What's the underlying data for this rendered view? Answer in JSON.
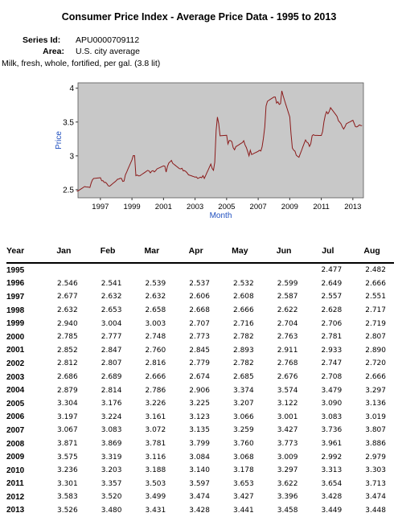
{
  "title": "Consumer Price Index - Average Price Data - 1995 to 2013",
  "series_id_label": "Series Id:",
  "series_id": "APU0000709112",
  "area_label": "Area:",
  "area": "U.S. city average",
  "item": "Milk, fresh, whole, fortified, per gal. (3.8 lit)",
  "chart_data": {
    "type": "line",
    "xlabel": "Month",
    "ylabel": "Price",
    "xlim": [
      1995.58,
      2013.67
    ],
    "ylim": [
      2.38,
      4.08
    ],
    "xticks": [
      1997,
      1999,
      2001,
      2003,
      2005,
      2007,
      2009,
      2011,
      2013
    ],
    "yticks": [
      2.5,
      3,
      3.5,
      4
    ],
    "grid": false,
    "colors": {
      "line": "#8b1a1a",
      "plot_bg": "#c8c8c8"
    },
    "series": [
      {
        "values_by_year": {
          "1995": [
            null,
            null,
            null,
            null,
            null,
            null,
            2.477,
            2.482,
            null,
            null,
            null,
            null
          ],
          "1996": [
            2.546,
            2.541,
            2.539,
            2.537,
            2.532,
            2.599,
            2.649,
            2.666,
            null,
            null,
            null,
            null
          ],
          "1997": [
            2.677,
            2.632,
            2.632,
            2.606,
            2.608,
            2.587,
            2.557,
            2.551,
            null,
            null,
            null,
            null
          ],
          "1998": [
            2.632,
            2.653,
            2.658,
            2.668,
            2.666,
            2.622,
            2.628,
            2.717,
            null,
            null,
            null,
            null
          ],
          "1999": [
            2.94,
            3.004,
            3.003,
            2.707,
            2.716,
            2.704,
            2.706,
            2.719,
            null,
            null,
            null,
            null
          ],
          "2000": [
            2.785,
            2.777,
            2.748,
            2.773,
            2.782,
            2.763,
            2.781,
            2.807,
            null,
            null,
            null,
            null
          ],
          "2001": [
            2.852,
            2.847,
            2.76,
            2.845,
            2.893,
            2.911,
            2.933,
            2.89,
            null,
            null,
            null,
            null
          ],
          "2002": [
            2.812,
            2.807,
            2.816,
            2.779,
            2.782,
            2.768,
            2.747,
            2.72,
            null,
            null,
            null,
            null
          ],
          "2003": [
            2.686,
            2.689,
            2.666,
            2.674,
            2.685,
            2.676,
            2.708,
            2.666,
            null,
            null,
            null,
            null
          ],
          "2004": [
            2.879,
            2.814,
            2.786,
            2.906,
            3.374,
            3.574,
            3.479,
            3.297,
            null,
            null,
            null,
            null
          ],
          "2005": [
            3.304,
            3.176,
            3.226,
            3.225,
            3.207,
            3.122,
            3.09,
            3.136,
            null,
            null,
            null,
            null
          ],
          "2006": [
            3.197,
            3.224,
            3.161,
            3.123,
            3.066,
            3.001,
            3.083,
            3.019,
            null,
            null,
            null,
            null
          ],
          "2007": [
            3.067,
            3.083,
            3.072,
            3.135,
            3.259,
            3.427,
            3.736,
            3.807,
            null,
            null,
            null,
            null
          ],
          "2008": [
            3.871,
            3.869,
            3.781,
            3.799,
            3.76,
            3.773,
            3.961,
            3.886,
            null,
            null,
            null,
            null
          ],
          "2009": [
            3.575,
            3.319,
            3.116,
            3.084,
            3.068,
            3.009,
            2.992,
            2.979,
            null,
            null,
            null,
            null
          ],
          "2010": [
            3.236,
            3.203,
            3.188,
            3.14,
            3.178,
            3.297,
            3.313,
            3.303,
            null,
            null,
            null,
            null
          ],
          "2011": [
            3.301,
            3.357,
            3.503,
            3.597,
            3.653,
            3.622,
            3.654,
            3.713,
            null,
            null,
            null,
            null
          ],
          "2012": [
            3.583,
            3.52,
            3.499,
            3.474,
            3.427,
            3.396,
            3.428,
            3.474,
            null,
            null,
            null,
            null
          ],
          "2013": [
            3.526,
            3.48,
            3.431,
            3.428,
            3.441,
            3.458,
            3.449,
            3.448,
            null,
            null,
            null,
            null
          ]
        }
      }
    ]
  },
  "table": {
    "columns": [
      "Year",
      "Jan",
      "Feb",
      "Mar",
      "Apr",
      "May",
      "Jun",
      "Jul",
      "Aug"
    ],
    "rows": [
      [
        "1995",
        "",
        "",
        "",
        "",
        "",
        "",
        "2.477",
        "2.482"
      ],
      [
        "1996",
        "2.546",
        "2.541",
        "2.539",
        "2.537",
        "2.532",
        "2.599",
        "2.649",
        "2.666"
      ],
      [
        "1997",
        "2.677",
        "2.632",
        "2.632",
        "2.606",
        "2.608",
        "2.587",
        "2.557",
        "2.551"
      ],
      [
        "1998",
        "2.632",
        "2.653",
        "2.658",
        "2.668",
        "2.666",
        "2.622",
        "2.628",
        "2.717"
      ],
      [
        "1999",
        "2.940",
        "3.004",
        "3.003",
        "2.707",
        "2.716",
        "2.704",
        "2.706",
        "2.719"
      ],
      [
        "2000",
        "2.785",
        "2.777",
        "2.748",
        "2.773",
        "2.782",
        "2.763",
        "2.781",
        "2.807"
      ],
      [
        "2001",
        "2.852",
        "2.847",
        "2.760",
        "2.845",
        "2.893",
        "2.911",
        "2.933",
        "2.890"
      ],
      [
        "2002",
        "2.812",
        "2.807",
        "2.816",
        "2.779",
        "2.782",
        "2.768",
        "2.747",
        "2.720"
      ],
      [
        "2003",
        "2.686",
        "2.689",
        "2.666",
        "2.674",
        "2.685",
        "2.676",
        "2.708",
        "2.666"
      ],
      [
        "2004",
        "2.879",
        "2.814",
        "2.786",
        "2.906",
        "3.374",
        "3.574",
        "3.479",
        "3.297"
      ],
      [
        "2005",
        "3.304",
        "3.176",
        "3.226",
        "3.225",
        "3.207",
        "3.122",
        "3.090",
        "3.136"
      ],
      [
        "2006",
        "3.197",
        "3.224",
        "3.161",
        "3.123",
        "3.066",
        "3.001",
        "3.083",
        "3.019"
      ],
      [
        "2007",
        "3.067",
        "3.083",
        "3.072",
        "3.135",
        "3.259",
        "3.427",
        "3.736",
        "3.807"
      ],
      [
        "2008",
        "3.871",
        "3.869",
        "3.781",
        "3.799",
        "3.760",
        "3.773",
        "3.961",
        "3.886"
      ],
      [
        "2009",
        "3.575",
        "3.319",
        "3.116",
        "3.084",
        "3.068",
        "3.009",
        "2.992",
        "2.979"
      ],
      [
        "2010",
        "3.236",
        "3.203",
        "3.188",
        "3.140",
        "3.178",
        "3.297",
        "3.313",
        "3.303"
      ],
      [
        "2011",
        "3.301",
        "3.357",
        "3.503",
        "3.597",
        "3.653",
        "3.622",
        "3.654",
        "3.713"
      ],
      [
        "2012",
        "3.583",
        "3.520",
        "3.499",
        "3.474",
        "3.427",
        "3.396",
        "3.428",
        "3.474"
      ],
      [
        "2013",
        "3.526",
        "3.480",
        "3.431",
        "3.428",
        "3.441",
        "3.458",
        "3.449",
        "3.448"
      ]
    ]
  }
}
